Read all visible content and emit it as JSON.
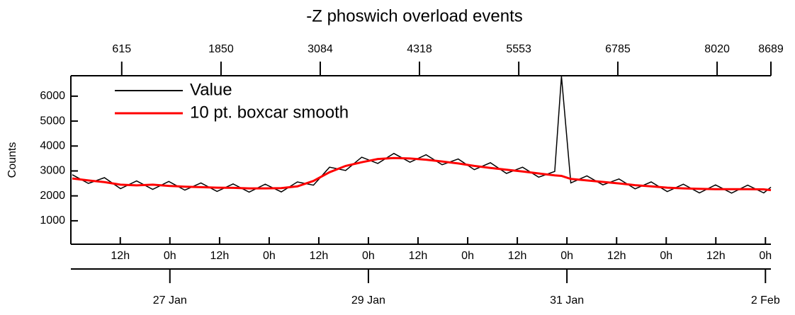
{
  "chart_data": {
    "type": "line",
    "title": "-Z phoswich overload events",
    "ylabel": "Counts",
    "x": [
      0,
      200,
      400,
      600,
      800,
      1000,
      1200,
      1400,
      1600,
      1800,
      2000,
      2200,
      2400,
      2600,
      2800,
      3000,
      3200,
      3400,
      3600,
      3800,
      4000,
      4200,
      4400,
      4600,
      4800,
      5000,
      5200,
      5400,
      5600,
      5800,
      6000,
      6084,
      6200,
      6400,
      6600,
      6800,
      7000,
      7200,
      7400,
      7600,
      7800,
      8000,
      8200,
      8400,
      8600,
      8689
    ],
    "series": [
      {
        "name": "Value",
        "color": "#000000",
        "values": [
          2850,
          2500,
          2730,
          2290,
          2600,
          2260,
          2580,
          2230,
          2520,
          2180,
          2480,
          2150,
          2470,
          2160,
          2560,
          2430,
          3150,
          3020,
          3550,
          3300,
          3700,
          3350,
          3650,
          3250,
          3480,
          3050,
          3330,
          2900,
          3150,
          2750,
          2980,
          6800,
          2520,
          2800,
          2440,
          2680,
          2280,
          2560,
          2170,
          2470,
          2120,
          2440,
          2110,
          2430,
          2120,
          2350
        ]
      },
      {
        "name": "10 pt. boxcar smooth",
        "color": "#ff0000",
        "values": [
          2700,
          2620,
          2550,
          2450,
          2420,
          2450,
          2400,
          2370,
          2350,
          2330,
          2320,
          2300,
          2300,
          2310,
          2380,
          2600,
          2950,
          3200,
          3350,
          3480,
          3520,
          3500,
          3450,
          3380,
          3300,
          3200,
          3120,
          3050,
          2980,
          2900,
          2820,
          2800,
          2680,
          2620,
          2560,
          2500,
          2430,
          2380,
          2330,
          2300,
          2280,
          2270,
          2270,
          2270,
          2260,
          2230
        ]
      }
    ],
    "xlim": [
      0,
      8689
    ],
    "xticks": [
      615,
      1850,
      3084,
      4318,
      5553,
      6785,
      8020,
      8689
    ],
    "x2ticks": [
      {
        "value": 597,
        "label": "12h"
      },
      {
        "value": 1214,
        "label": "0h"
      },
      {
        "value": 1832,
        "label": "12h"
      },
      {
        "value": 2449,
        "label": "0h"
      },
      {
        "value": 3066,
        "label": "12h"
      },
      {
        "value": 3683,
        "label": "0h"
      },
      {
        "value": 4300,
        "label": "12h"
      },
      {
        "value": 4918,
        "label": "0h"
      },
      {
        "value": 5535,
        "label": "12h"
      },
      {
        "value": 6152,
        "label": "0h"
      },
      {
        "value": 6770,
        "label": "12h"
      },
      {
        "value": 7387,
        "label": "0h"
      },
      {
        "value": 8004,
        "label": "12h"
      },
      {
        "value": 8621,
        "label": "0h"
      }
    ],
    "x3ticks": [
      {
        "value": 1214,
        "label": "27 Jan"
      },
      {
        "value": 3683,
        "label": "29 Jan"
      },
      {
        "value": 6152,
        "label": "31 Jan"
      },
      {
        "value": 8621,
        "label": "2 Feb"
      }
    ],
    "ylim": [
      60,
      6820
    ],
    "yticks": [
      1000,
      2000,
      3000,
      4000,
      5000,
      6000
    ],
    "legend": "upper left"
  }
}
